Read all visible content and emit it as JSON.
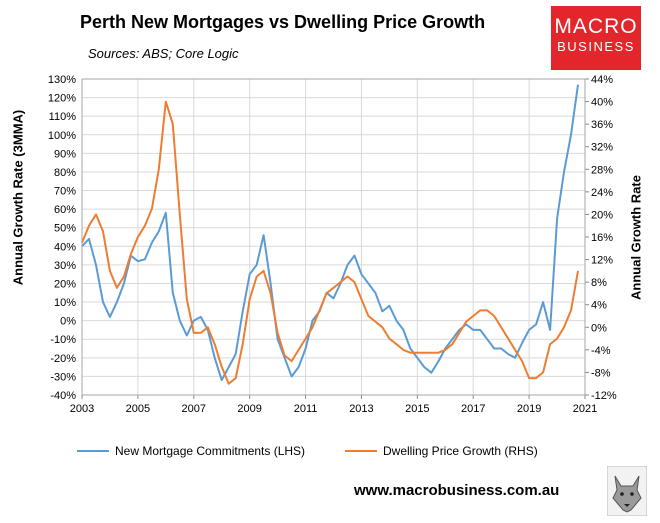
{
  "header": {
    "title": "Perth New Mortgages vs Dwelling Price Growth",
    "subtitle": "Sources: ABS; Core Logic"
  },
  "logo": {
    "line1": "MACRO",
    "line2": "BUSINESS"
  },
  "footer": {
    "url": "www.macrobusiness.com.au"
  },
  "colors": {
    "lhs_series": "#5b9bd5",
    "rhs_series": "#ed7d31",
    "gridline": "#d9d9d9",
    "logo_bg": "#e3262b"
  },
  "icons": {
    "footer_logo": "wolf-head-icon"
  },
  "chart_data": {
    "type": "line",
    "ylabel": "Annual Growth Rate (3MMA)",
    "y2label": "Annual Growth Rate",
    "xlim": [
      2003,
      2021
    ],
    "ylim": [
      -40,
      130
    ],
    "y2lim": [
      -12,
      44
    ],
    "x_ticks": [
      2003,
      2005,
      2007,
      2009,
      2011,
      2013,
      2015,
      2017,
      2019,
      2021
    ],
    "x_tick_labels": [
      "2003",
      "2005",
      "2007",
      "2009",
      "2011",
      "2013",
      "2015",
      "2017",
      "2019",
      "2021"
    ],
    "y_ticks": [
      -40,
      -30,
      -20,
      -10,
      0,
      10,
      20,
      30,
      40,
      50,
      60,
      70,
      80,
      90,
      100,
      110,
      120,
      130
    ],
    "y_tick_labels": [
      "-40%",
      "-30%",
      "-20%",
      "-10%",
      "0%",
      "10%",
      "20%",
      "30%",
      "40%",
      "50%",
      "60%",
      "70%",
      "80%",
      "90%",
      "100%",
      "110%",
      "120%",
      "130%"
    ],
    "y2_ticks": [
      -12,
      -8,
      -4,
      0,
      4,
      8,
      12,
      16,
      20,
      24,
      28,
      32,
      36,
      40,
      44
    ],
    "y2_tick_labels": [
      "-12%",
      "-8%",
      "-4%",
      "0%",
      "4%",
      "8%",
      "12%",
      "16%",
      "20%",
      "24%",
      "28%",
      "32%",
      "36%",
      "40%",
      "44%"
    ],
    "grid": true,
    "legend": "bottom",
    "series": [
      {
        "name": "New Mortgage Commitments (LHS)",
        "axis": "left",
        "x": [
          2003.0,
          2003.25,
          2003.5,
          2003.75,
          2004.0,
          2004.25,
          2004.5,
          2004.75,
          2005.0,
          2005.25,
          2005.5,
          2005.75,
          2006.0,
          2006.25,
          2006.5,
          2006.75,
          2007.0,
          2007.25,
          2007.5,
          2007.75,
          2008.0,
          2008.25,
          2008.5,
          2008.75,
          2009.0,
          2009.25,
          2009.5,
          2009.75,
          2010.0,
          2010.25,
          2010.5,
          2010.75,
          2011.0,
          2011.25,
          2011.5,
          2011.75,
          2012.0,
          2012.25,
          2012.5,
          2012.75,
          2013.0,
          2013.25,
          2013.5,
          2013.75,
          2014.0,
          2014.25,
          2014.5,
          2014.75,
          2015.0,
          2015.25,
          2015.5,
          2015.75,
          2016.0,
          2016.25,
          2016.5,
          2016.75,
          2017.0,
          2017.25,
          2017.5,
          2017.75,
          2018.0,
          2018.25,
          2018.5,
          2018.75,
          2019.0,
          2019.25,
          2019.5,
          2019.75,
          2020.0,
          2020.25,
          2020.5,
          2020.75
        ],
        "values": [
          40,
          44,
          30,
          10,
          2,
          10,
          20,
          35,
          32,
          33,
          42,
          48,
          58,
          15,
          0,
          -8,
          0,
          2,
          -5,
          -20,
          -32,
          -25,
          -18,
          5,
          25,
          30,
          46,
          20,
          -10,
          -20,
          -30,
          -25,
          -15,
          0,
          5,
          15,
          12,
          20,
          30,
          35,
          25,
          20,
          15,
          5,
          8,
          0,
          -5,
          -15,
          -20,
          -25,
          -28,
          -22,
          -15,
          -10,
          -5,
          -2,
          -5,
          -5,
          -10,
          -15,
          -15,
          -18,
          -20,
          -12,
          -5,
          -2,
          10,
          -5,
          55,
          80,
          100,
          127
        ]
      },
      {
        "name": "Dwelling Price Growth (RHS)",
        "axis": "right",
        "x": [
          2003.0,
          2003.25,
          2003.5,
          2003.75,
          2004.0,
          2004.25,
          2004.5,
          2004.75,
          2005.0,
          2005.25,
          2005.5,
          2005.75,
          2006.0,
          2006.25,
          2006.5,
          2006.75,
          2007.0,
          2007.25,
          2007.5,
          2007.75,
          2008.0,
          2008.25,
          2008.5,
          2008.75,
          2009.0,
          2009.25,
          2009.5,
          2009.75,
          2010.0,
          2010.25,
          2010.5,
          2010.75,
          2011.0,
          2011.25,
          2011.5,
          2011.75,
          2012.0,
          2012.25,
          2012.5,
          2012.75,
          2013.0,
          2013.25,
          2013.5,
          2013.75,
          2014.0,
          2014.25,
          2014.5,
          2014.75,
          2015.0,
          2015.25,
          2015.5,
          2015.75,
          2016.0,
          2016.25,
          2016.5,
          2016.75,
          2017.0,
          2017.25,
          2017.5,
          2017.75,
          2018.0,
          2018.25,
          2018.5,
          2018.75,
          2019.0,
          2019.25,
          2019.5,
          2019.75,
          2020.0,
          2020.25,
          2020.5,
          2020.75
        ],
        "values": [
          15,
          18,
          20,
          17,
          10,
          7,
          9,
          13,
          16,
          18,
          21,
          28,
          40,
          36,
          20,
          5,
          -1,
          -1,
          0,
          -3,
          -7,
          -10,
          -9,
          -3,
          5,
          9,
          10,
          6,
          -1,
          -5,
          -6,
          -4,
          -2,
          0,
          3,
          6,
          7,
          8,
          9,
          8,
          5,
          2,
          1,
          0,
          -2,
          -3,
          -4,
          -4.5,
          -4.5,
          -4.5,
          -4.5,
          -4.5,
          -4,
          -3,
          -1,
          1,
          2,
          3,
          3,
          2,
          0,
          -2,
          -4,
          -6,
          -9,
          -9,
          -8,
          -3,
          -2,
          0,
          3,
          10
        ]
      }
    ]
  }
}
